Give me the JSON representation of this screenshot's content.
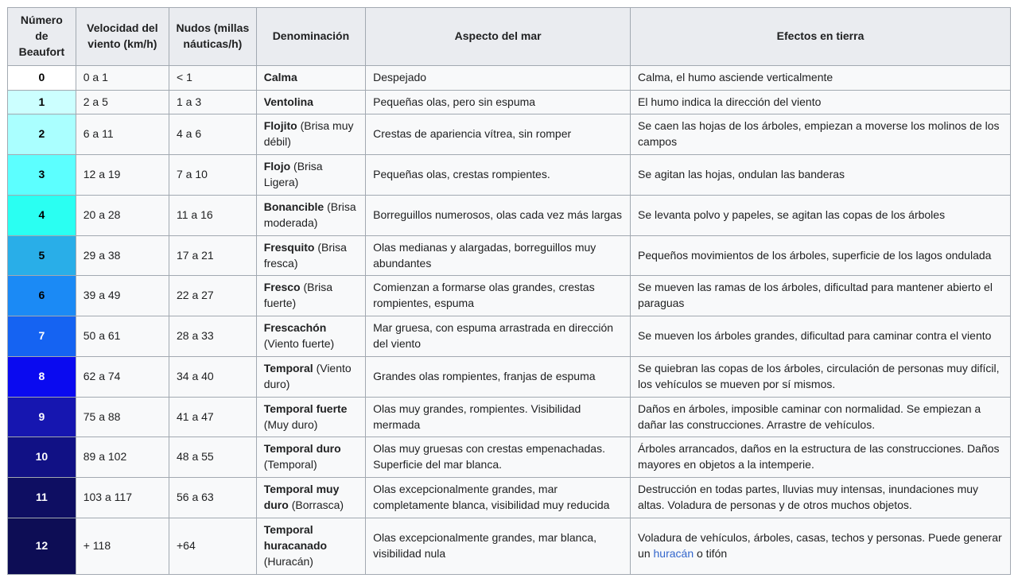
{
  "table": {
    "columns": [
      "Número de Beaufort",
      "Velocidad del viento (km/h)",
      "Nudos (millas náuticas/h)",
      "Denominación",
      "Aspecto del mar",
      "Efectos en tierra"
    ],
    "column_widths_pct": [
      6.8,
      9.3,
      8.7,
      10.9,
      26.4,
      37.9
    ],
    "colors": {
      "border": "#a2a9b1",
      "header_bg": "#eaecf0",
      "cell_bg": "#f8f9fa",
      "body_text": "#202122",
      "link": "#3366cc"
    },
    "rows": [
      {
        "beaufort": "0",
        "color": "#ffffff",
        "text_color": "#000000",
        "speed_kmh": "0 a 1",
        "knots": "< 1",
        "denomination": {
          "name": "Calma",
          "qualifier": ""
        },
        "sea": "Despejado",
        "land": [
          {
            "text": "Calma, el humo asciende verticalmente"
          }
        ]
      },
      {
        "beaufort": "1",
        "color": "#ccffff",
        "text_color": "#000000",
        "speed_kmh": "2 a 5",
        "knots": "1 a 3",
        "denomination": {
          "name": "Ventolina",
          "qualifier": ""
        },
        "sea": "Pequeñas olas, pero sin espuma",
        "land": [
          {
            "text": "El humo indica la dirección del viento"
          }
        ]
      },
      {
        "beaufort": "2",
        "color": "#aaffff",
        "text_color": "#000000",
        "speed_kmh": "6 a 11",
        "knots": "4 a 6",
        "denomination": {
          "name": "Flojito",
          "qualifier": "(Brisa muy débil)"
        },
        "sea": "Crestas de apariencia vítrea, sin romper",
        "land": [
          {
            "text": "Se caen las hojas de los árboles, empiezan a moverse los molinos de los campos"
          }
        ]
      },
      {
        "beaufort": "3",
        "color": "#5cffff",
        "text_color": "#000000",
        "speed_kmh": "12 a 19",
        "knots": "7 a 10",
        "denomination": {
          "name": "Flojo",
          "qualifier": "(Brisa Ligera)"
        },
        "sea": "Pequeñas olas, crestas rompientes.",
        "land": [
          {
            "text": "Se agitan las hojas, ondulan las banderas"
          }
        ]
      },
      {
        "beaufort": "4",
        "color": "#2afff2",
        "text_color": "#000000",
        "speed_kmh": "20 a 28",
        "knots": "11 a 16",
        "denomination": {
          "name": "Bonancible",
          "qualifier": "(Brisa moderada)"
        },
        "sea": "Borreguillos numerosos, olas cada vez más largas",
        "land": [
          {
            "text": "Se levanta polvo y papeles, se agitan las copas de los árboles"
          }
        ]
      },
      {
        "beaufort": "5",
        "color": "#29aee8",
        "text_color": "#000000",
        "speed_kmh": "29 a 38",
        "knots": "17 a 21",
        "denomination": {
          "name": "Fresquito",
          "qualifier": "(Brisa fresca)"
        },
        "sea": "Olas medianas y alargadas, borreguillos muy abundantes",
        "land": [
          {
            "text": "Pequeños movimientos de los árboles, superficie de los lagos ondulada"
          }
        ]
      },
      {
        "beaufort": "6",
        "color": "#1b8af5",
        "text_color": "#000000",
        "speed_kmh": "39 a 49",
        "knots": "22 a 27",
        "denomination": {
          "name": "Fresco",
          "qualifier": "(Brisa fuerte)"
        },
        "sea": "Comienzan a formarse olas grandes, crestas rompientes, espuma",
        "land": [
          {
            "text": "Se mueven las ramas de los árboles, dificultad para mantener abierto el paraguas"
          }
        ]
      },
      {
        "beaufort": "7",
        "color": "#1563f2",
        "text_color": "#ffffff",
        "speed_kmh": "50 a 61",
        "knots": "28 a 33",
        "denomination": {
          "name": "Frescachón",
          "qualifier": "(Viento fuerte)"
        },
        "sea": "Mar gruesa, con espuma arrastrada en dirección del viento",
        "land": [
          {
            "text": "Se mueven los árboles grandes, dificultad para caminar contra el viento"
          }
        ]
      },
      {
        "beaufort": "8",
        "color": "#0a0af0",
        "text_color": "#ffffff",
        "speed_kmh": "62 a 74",
        "knots": "34 a 40",
        "denomination": {
          "name": "Temporal",
          "qualifier": "(Viento duro)"
        },
        "sea": "Grandes olas rompientes, franjas de espuma",
        "land": [
          {
            "text": "Se quiebran las copas de los árboles, circulación de personas muy difícil, los vehículos se mueven por sí mismos."
          }
        ]
      },
      {
        "beaufort": "9",
        "color": "#1616b0",
        "text_color": "#ffffff",
        "speed_kmh": "75 a 88",
        "knots": "41 a 47",
        "denomination": {
          "name": "Temporal fuerte",
          "qualifier": "(Muy duro)"
        },
        "sea": "Olas muy grandes, rompientes. Visibilidad mermada",
        "land": [
          {
            "text": "Daños en árboles, imposible caminar con normalidad. Se empiezan a dañar las construcciones. Arrastre de vehículos."
          }
        ]
      },
      {
        "beaufort": "10",
        "color": "#111185",
        "text_color": "#ffffff",
        "speed_kmh": "89 a 102",
        "knots": "48 a 55",
        "denomination": {
          "name": "Temporal duro",
          "qualifier": "(Temporal)"
        },
        "sea": "Olas muy gruesas con crestas empenachadas. Superficie del mar blanca.",
        "land": [
          {
            "text": "Árboles arrancados, daños en la estructura de las construcciones. Daños mayores en objetos a la intemperie."
          }
        ]
      },
      {
        "beaufort": "11",
        "color": "#0e0e62",
        "text_color": "#ffffff",
        "speed_kmh": "103 a 117",
        "knots": "56 a 63",
        "denomination": {
          "name": "Temporal muy duro",
          "qualifier": "(Borrasca)"
        },
        "sea": "Olas excepcionalmente grandes, mar completamente blanca, visibilidad muy reducida",
        "land": [
          {
            "text": "Destrucción en todas partes, lluvias muy intensas, inundaciones muy altas. Voladura de personas y de otros muchos objetos."
          }
        ]
      },
      {
        "beaufort": "12",
        "color": "#0d0d55",
        "text_color": "#ffffff",
        "speed_kmh": "+ 118",
        "knots": "+64",
        "denomination": {
          "name": "Temporal huracanado",
          "qualifier": "(Huracán)"
        },
        "sea": "Olas excepcionalmente grandes, mar blanca, visibilidad nula",
        "land": [
          {
            "text": "Voladura de vehículos, árboles, casas, techos y personas. Puede generar un "
          },
          {
            "text": "huracán",
            "link": true
          },
          {
            "text": " o tifón"
          }
        ]
      }
    ]
  }
}
